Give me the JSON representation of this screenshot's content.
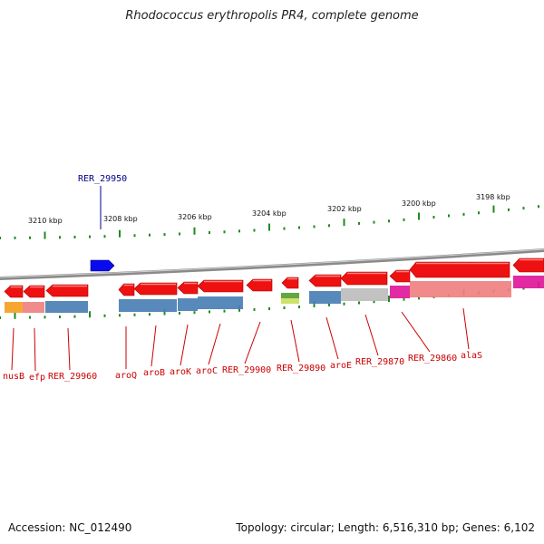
{
  "title": "Rhodococcus erythropolis PR4, complete genome",
  "footer": {
    "accession": "Accession: NC_012490",
    "topology": "Topology: circular; Length: 6,516,310 bp; Genes: 6,102"
  },
  "colors": {
    "backbone": "#8a8a8a",
    "tick": "#1f8a1f",
    "gene_arrow": "#ee1111",
    "highlight_gene": "#0a0aee",
    "label_leader": "#cc0000",
    "highlight_label": "#00008b",
    "feature_blue": "#4a7fb5",
    "feature_orange": "#f5a020",
    "feature_pink": "#f08080",
    "feature_grey": "#bdbdbd",
    "feature_magenta": "#e0189a",
    "feature_green": "#55a030"
  },
  "scale": {
    "labels": [
      "3210 kbp",
      "3208 kbp",
      "3206 kbp",
      "3204 kbp",
      "3202 kbp",
      "3200 kbp",
      "3198 kbp"
    ]
  },
  "highlight": {
    "label": "RER_29950"
  },
  "genes": [
    {
      "label": "nusB"
    },
    {
      "label": "efp"
    },
    {
      "label": "RER_29960"
    },
    {
      "label": "aroQ"
    },
    {
      "label": "aroB"
    },
    {
      "label": "aroK"
    },
    {
      "label": "aroC"
    },
    {
      "label": "RER_29900"
    },
    {
      "label": "RER_29890"
    },
    {
      "label": "aroE"
    },
    {
      "label": "RER_29870"
    },
    {
      "label": "RER_29860"
    },
    {
      "label": "alaS"
    }
  ]
}
